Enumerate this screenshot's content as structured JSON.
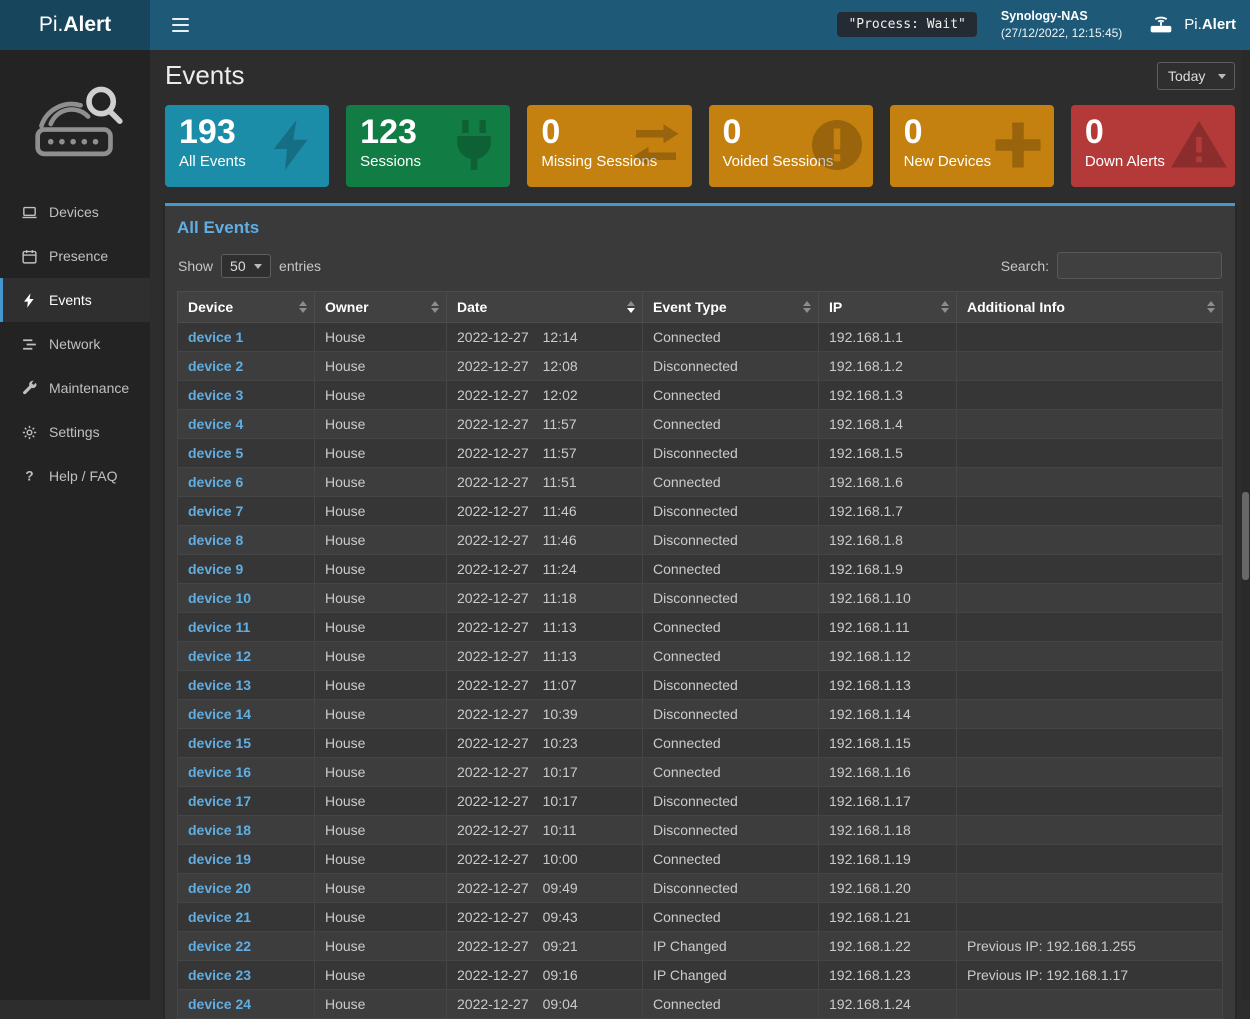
{
  "colors": {
    "accent": "#4697cf",
    "link": "#61aee3"
  },
  "topbar": {
    "logo_prefix": "Pi.",
    "logo_bold": "Alert",
    "process_status": "\"Process: Wait\"",
    "host_name": "Synology-NAS",
    "host_datetime": "(27/12/2022, 12:15:45)",
    "brand_prefix": "Pi.",
    "brand_bold": "Alert"
  },
  "sidebar": {
    "items": [
      {
        "label": "Devices",
        "icon": "laptop-icon",
        "active": false
      },
      {
        "label": "Presence",
        "icon": "calendar-icon",
        "active": false
      },
      {
        "label": "Events",
        "icon": "bolt-icon",
        "active": true
      },
      {
        "label": "Network",
        "icon": "stream-icon",
        "active": false
      },
      {
        "label": "Maintenance",
        "icon": "wrench-icon",
        "active": false
      },
      {
        "label": "Settings",
        "icon": "gear-icon",
        "active": false
      },
      {
        "label": "Help / FAQ",
        "icon": "question-icon",
        "active": false
      }
    ]
  },
  "header": {
    "title": "Events",
    "period": "Today"
  },
  "stat_cards": [
    {
      "value": "193",
      "label": "All Events",
      "color": "#1b8da8",
      "icon": "bolt-icon"
    },
    {
      "value": "123",
      "label": "Sessions",
      "color": "#127c45",
      "icon": "plug-icon"
    },
    {
      "value": "0",
      "label": "Missing Sessions",
      "color": "#c4810f",
      "icon": "exchange-icon"
    },
    {
      "value": "0",
      "label": "Voided Sessions",
      "color": "#c4810f",
      "icon": "exclamation-icon"
    },
    {
      "value": "0",
      "label": "New Devices",
      "color": "#c4810f",
      "icon": "plus-icon"
    },
    {
      "value": "0",
      "label": "Down Alerts",
      "color": "#b43a3a",
      "icon": "warning-icon"
    }
  ],
  "events_panel": {
    "title": "All Events",
    "show_label": "Show",
    "entries_label": "entries",
    "page_length": "50",
    "search_label": "Search:",
    "search_value": "",
    "table": {
      "columns": [
        "Device",
        "Owner",
        "Date",
        "Event Type",
        "IP",
        "Additional Info"
      ],
      "sorted_column": "Date",
      "sorted_dir": "desc",
      "rows": [
        {
          "device": "device 1",
          "owner": "House",
          "date": "2022-12-27",
          "time": "12:14",
          "event_type": "Connected",
          "ip": "192.168.1.1",
          "info": ""
        },
        {
          "device": "device 2",
          "owner": "House",
          "date": "2022-12-27",
          "time": "12:08",
          "event_type": "Disconnected",
          "ip": "192.168.1.2",
          "info": ""
        },
        {
          "device": "device 3",
          "owner": "House",
          "date": "2022-12-27",
          "time": "12:02",
          "event_type": "Connected",
          "ip": "192.168.1.3",
          "info": ""
        },
        {
          "device": "device 4",
          "owner": "House",
          "date": "2022-12-27",
          "time": "11:57",
          "event_type": "Connected",
          "ip": "192.168.1.4",
          "info": ""
        },
        {
          "device": "device 5",
          "owner": "House",
          "date": "2022-12-27",
          "time": "11:57",
          "event_type": "Disconnected",
          "ip": "192.168.1.5",
          "info": ""
        },
        {
          "device": "device 6",
          "owner": "House",
          "date": "2022-12-27",
          "time": "11:51",
          "event_type": "Connected",
          "ip": "192.168.1.6",
          "info": ""
        },
        {
          "device": "device 7",
          "owner": "House",
          "date": "2022-12-27",
          "time": "11:46",
          "event_type": "Disconnected",
          "ip": "192.168.1.7",
          "info": ""
        },
        {
          "device": "device 8",
          "owner": "House",
          "date": "2022-12-27",
          "time": "11:46",
          "event_type": "Disconnected",
          "ip": "192.168.1.8",
          "info": ""
        },
        {
          "device": "device 9",
          "owner": "House",
          "date": "2022-12-27",
          "time": "11:24",
          "event_type": "Connected",
          "ip": "192.168.1.9",
          "info": ""
        },
        {
          "device": "device 10",
          "owner": "House",
          "date": "2022-12-27",
          "time": "11:18",
          "event_type": "Disconnected",
          "ip": "192.168.1.10",
          "info": ""
        },
        {
          "device": "device 11",
          "owner": "House",
          "date": "2022-12-27",
          "time": "11:13",
          "event_type": "Connected",
          "ip": "192.168.1.11",
          "info": ""
        },
        {
          "device": "device 12",
          "owner": "House",
          "date": "2022-12-27",
          "time": "11:13",
          "event_type": "Connected",
          "ip": "192.168.1.12",
          "info": ""
        },
        {
          "device": "device 13",
          "owner": "House",
          "date": "2022-12-27",
          "time": "11:07",
          "event_type": "Disconnected",
          "ip": "192.168.1.13",
          "info": ""
        },
        {
          "device": "device 14",
          "owner": "House",
          "date": "2022-12-27",
          "time": "10:39",
          "event_type": "Disconnected",
          "ip": "192.168.1.14",
          "info": ""
        },
        {
          "device": "device 15",
          "owner": "House",
          "date": "2022-12-27",
          "time": "10:23",
          "event_type": "Connected",
          "ip": "192.168.1.15",
          "info": ""
        },
        {
          "device": "device 16",
          "owner": "House",
          "date": "2022-12-27",
          "time": "10:17",
          "event_type": "Connected",
          "ip": "192.168.1.16",
          "info": ""
        },
        {
          "device": "device 17",
          "owner": "House",
          "date": "2022-12-27",
          "time": "10:17",
          "event_type": "Disconnected",
          "ip": "192.168.1.17",
          "info": ""
        },
        {
          "device": "device 18",
          "owner": "House",
          "date": "2022-12-27",
          "time": "10:11",
          "event_type": "Disconnected",
          "ip": "192.168.1.18",
          "info": ""
        },
        {
          "device": "device 19",
          "owner": "House",
          "date": "2022-12-27",
          "time": "10:00",
          "event_type": "Connected",
          "ip": "192.168.1.19",
          "info": ""
        },
        {
          "device": "device 20",
          "owner": "House",
          "date": "2022-12-27",
          "time": "09:49",
          "event_type": "Disconnected",
          "ip": "192.168.1.20",
          "info": ""
        },
        {
          "device": "device 21",
          "owner": "House",
          "date": "2022-12-27",
          "time": "09:43",
          "event_type": "Connected",
          "ip": "192.168.1.21",
          "info": ""
        },
        {
          "device": "device 22",
          "owner": "House",
          "date": "2022-12-27",
          "time": "09:21",
          "event_type": "IP Changed",
          "ip": "192.168.1.22",
          "info": "Previous IP: 192.168.1.255"
        },
        {
          "device": "device 23",
          "owner": "House",
          "date": "2022-12-27",
          "time": "09:16",
          "event_type": "IP Changed",
          "ip": "192.168.1.23",
          "info": "Previous IP: 192.168.1.17"
        },
        {
          "device": "device 24",
          "owner": "House",
          "date": "2022-12-27",
          "time": "09:04",
          "event_type": "Connected",
          "ip": "192.168.1.24",
          "info": ""
        }
      ]
    }
  }
}
